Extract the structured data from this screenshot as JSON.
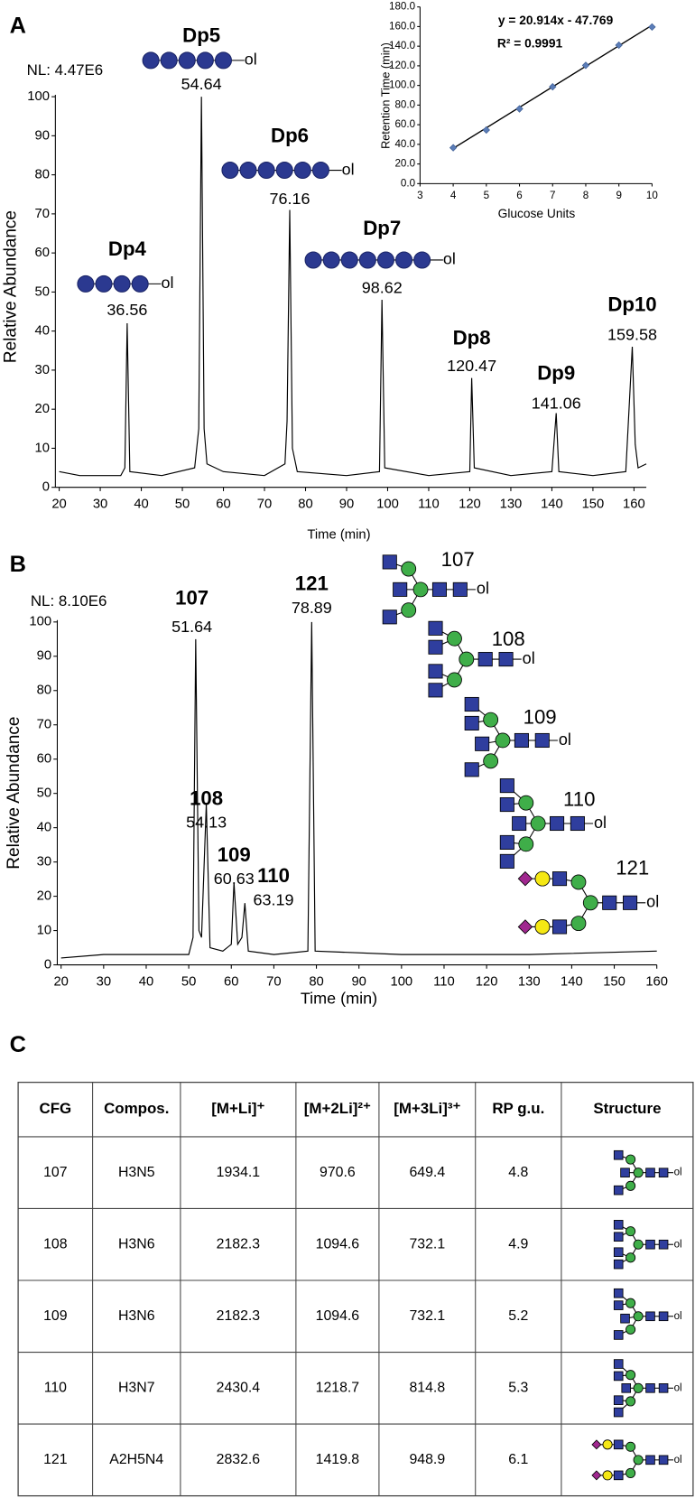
{
  "panels": [
    "A",
    "B",
    "C"
  ],
  "glycan_suffix": "ol",
  "chart_data": [
    {
      "type": "line",
      "nl_label": "NL: 4.47E6",
      "x_label": "Time (min)",
      "y_label": "Relative Abundance",
      "color": "#000000",
      "xlim": [
        20,
        163
      ],
      "ylim": [
        0,
        100
      ],
      "xticks": [
        20,
        30,
        40,
        50,
        60,
        70,
        80,
        90,
        100,
        110,
        120,
        130,
        140,
        150,
        160
      ],
      "yticks": [
        0,
        10,
        20,
        30,
        40,
        50,
        60,
        70,
        80,
        90,
        100
      ],
      "x": [
        20,
        25,
        30,
        35,
        36,
        36.56,
        37.2,
        45,
        53,
        54,
        54.64,
        55.3,
        56,
        60,
        70,
        75,
        75.5,
        76.16,
        76.8,
        78,
        90,
        98,
        98.62,
        99.3,
        110,
        120,
        120.47,
        121.1,
        130,
        140,
        141.06,
        141.7,
        150,
        158,
        159.58,
        160.3,
        161,
        163
      ],
      "values": [
        4,
        3,
        3,
        3,
        5,
        42,
        4,
        3,
        5,
        15,
        100,
        15,
        6,
        4,
        3,
        6,
        17,
        71,
        10,
        4,
        3,
        4,
        48,
        5,
        3,
        4,
        28,
        5,
        3,
        4,
        19,
        4,
        3,
        4,
        36,
        11,
        5,
        6
      ],
      "peaks": [
        {
          "label": "Dp4",
          "rt": 36.56
        },
        {
          "label": "Dp5",
          "rt": 54.64
        },
        {
          "label": "Dp6",
          "rt": 76.16
        },
        {
          "label": "Dp7",
          "rt": 98.62
        },
        {
          "label": "Dp8",
          "rt": 120.47
        },
        {
          "label": "Dp9",
          "rt": 141.06
        },
        {
          "label": "Dp10",
          "rt": 159.58
        }
      ]
    },
    {
      "type": "scatter",
      "x_label": "Glucose Units",
      "y_label": "Retention Time (min)",
      "color": "#5b7db8",
      "equation": "y = 20.914x - 47.769",
      "r_squared": "R² = 0.9991",
      "trendline": {
        "slope": 20.914,
        "intercept": -47.769
      },
      "xlim": [
        3,
        10
      ],
      "ylim": [
        0,
        180
      ],
      "xticks": [
        3,
        4,
        5,
        6,
        7,
        8,
        9,
        10
      ],
      "yticks": [
        {
          "value": 0,
          "label": "0.0"
        },
        {
          "value": 20,
          "label": "20.0"
        },
        {
          "value": 40,
          "label": "40.0"
        },
        {
          "value": 60,
          "label": "60.0"
        },
        {
          "value": 80,
          "label": "80.0"
        },
        {
          "value": 100,
          "label": "100.0"
        },
        {
          "value": 120,
          "label": "120.0"
        },
        {
          "value": 140,
          "label": "140.0"
        },
        {
          "value": 160,
          "label": "160.0"
        },
        {
          "value": 180,
          "label": "180.0"
        }
      ],
      "x": [
        4,
        5,
        6,
        7,
        8,
        9,
        10
      ],
      "values": [
        36.56,
        54.64,
        76.16,
        98.62,
        120.47,
        141.06,
        159.58
      ]
    },
    {
      "type": "line",
      "nl_label": "NL: 8.10E6",
      "x_label": "Time (min)",
      "y_label": "Relative Abundance",
      "color": "#000000",
      "xlim": [
        20,
        160
      ],
      "ylim": [
        0,
        100
      ],
      "xticks": [
        20,
        30,
        40,
        50,
        60,
        70,
        80,
        90,
        100,
        110,
        120,
        130,
        140,
        150,
        160
      ],
      "yticks": [
        0,
        10,
        20,
        30,
        40,
        50,
        60,
        70,
        80,
        90,
        100
      ],
      "x": [
        20,
        30,
        40,
        50,
        51,
        51.64,
        52.4,
        53,
        54.13,
        55,
        58,
        60,
        60.63,
        61.5,
        62.5,
        63.19,
        64,
        70,
        78,
        78.89,
        79.7,
        100,
        130,
        160
      ],
      "values": [
        2,
        3,
        3,
        3,
        8,
        95,
        10,
        8,
        47,
        5,
        4,
        6,
        24,
        6,
        8,
        18,
        4,
        3,
        4,
        100,
        4,
        3,
        3,
        4
      ],
      "peaks": [
        {
          "label": 107,
          "rt": 51.64
        },
        {
          "label": 108,
          "rt": 54.13
        },
        {
          "label": 109,
          "rt": 60.63
        },
        {
          "label": 110,
          "rt": 63.19
        },
        {
          "label": 121,
          "rt": 78.89
        }
      ],
      "structures": [
        107,
        108,
        109,
        110,
        121
      ]
    }
  ],
  "table": {
    "header": [
      "CFG",
      "Compos.",
      "[M+Li]⁺",
      "[M+2Li]²⁺",
      "[M+3Li]³⁺",
      "RP g.u.",
      "Structure"
    ],
    "rows": [
      [
        "107",
        "H3N5",
        "1934.1",
        "970.6",
        "649.4",
        "4.8"
      ],
      [
        "108",
        "H3N6",
        "2182.3",
        "1094.6",
        "732.1",
        "4.9"
      ],
      [
        "109",
        "H3N6",
        "2182.3",
        "1094.6",
        "732.1",
        "5.2"
      ],
      [
        "110",
        "H3N7",
        "2430.4",
        "1218.7",
        "814.8",
        "5.3"
      ],
      [
        "121",
        "A2H5N4",
        "2832.6",
        "1419.8",
        "948.9",
        "6.1"
      ]
    ]
  }
}
